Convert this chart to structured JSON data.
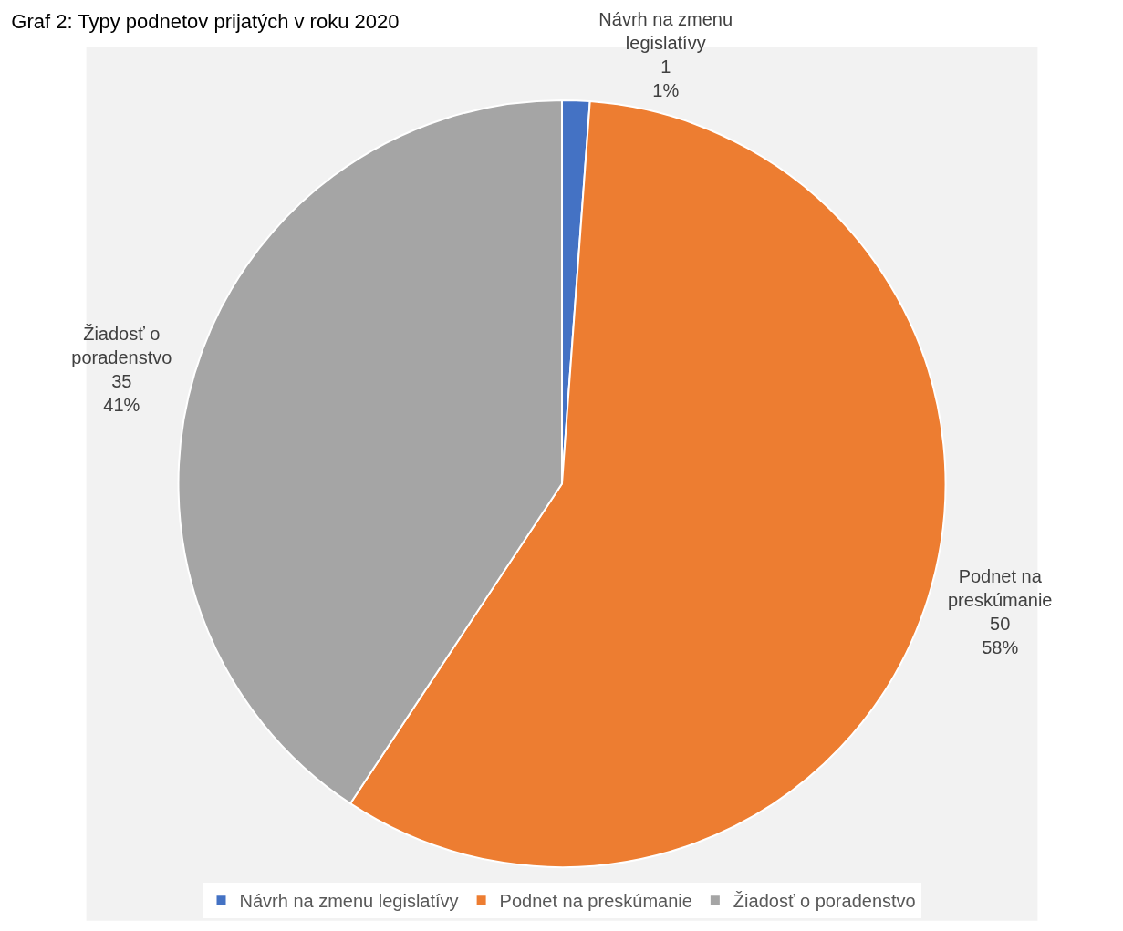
{
  "chart_data": {
    "type": "pie",
    "title": "Graf 2: Typy podnetov prijatých v roku 2020",
    "categories": [
      "Návrh na zmenu legislatívy",
      "Podnet na preskúmanie",
      "Žiadosť o poradenstvo"
    ],
    "values": [
      1,
      50,
      35
    ],
    "colors": [
      "#4472c4",
      "#ed7d31",
      "#a5a5a5"
    ],
    "value_labels": [
      "Návrh na zmenu\nlegislatívy\n1\n1%",
      "Podnet na\npreskúmanie\n50\n58%",
      "Žiadosť o\nporadenstvo\n35\n41%"
    ],
    "legend": "bottom"
  }
}
